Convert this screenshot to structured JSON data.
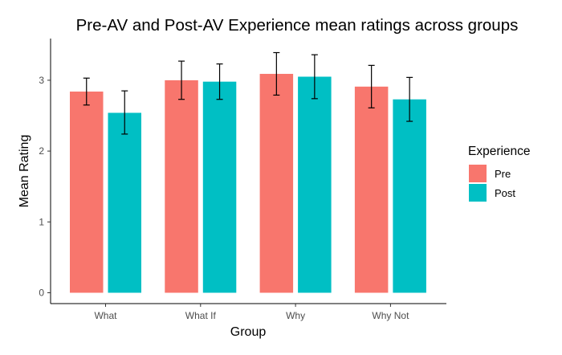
{
  "chart_data": {
    "type": "bar",
    "title": "Pre-AV and Post-AV Experience mean ratings across groups",
    "xlabel": "Group",
    "ylabel": "Mean Rating",
    "categories": [
      "What",
      "What If",
      "Why",
      "Why Not"
    ],
    "ylim": [
      0,
      3.5
    ],
    "yticks": [
      "0",
      "1",
      "2",
      "3"
    ],
    "grid": false,
    "legend": {
      "title": "Experience",
      "placement": "right"
    },
    "series": [
      {
        "name": "Pre",
        "color": "#F8766D",
        "values": [
          2.84,
          3.0,
          3.09,
          2.91
        ],
        "err_low": [
          2.65,
          2.73,
          2.79,
          2.61
        ],
        "err_high": [
          3.03,
          3.27,
          3.39,
          3.21
        ]
      },
      {
        "name": "Post",
        "color": "#00BFC4",
        "values": [
          2.54,
          2.98,
          3.05,
          2.73
        ],
        "err_low": [
          2.24,
          2.73,
          2.74,
          2.42
        ],
        "err_high": [
          2.85,
          3.23,
          3.36,
          3.04
        ]
      }
    ]
  }
}
